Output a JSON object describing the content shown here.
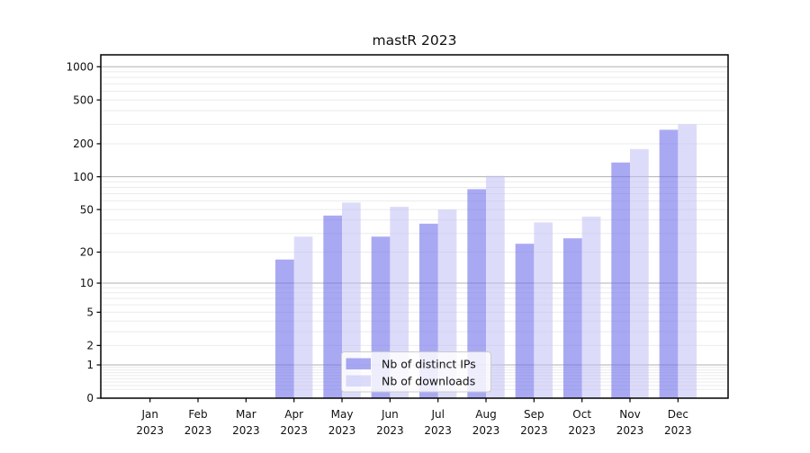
{
  "chart_data": {
    "type": "bar",
    "title": "mastR 2023",
    "yscale": "log1p",
    "ylim": [
      0,
      1282
    ],
    "yticks": [
      0,
      1,
      2,
      5,
      10,
      20,
      50,
      100,
      200,
      500,
      1000
    ],
    "major_gridlines": [
      1,
      10,
      100,
      1000
    ],
    "grid": true,
    "legend_position": "lower center",
    "categories": [
      "Jan",
      "Feb",
      "Mar",
      "Apr",
      "May",
      "Jun",
      "Jul",
      "Aug",
      "Sep",
      "Oct",
      "Nov",
      "Dec"
    ],
    "year": "2023",
    "series": [
      {
        "name": "Nb of distinct IPs",
        "color": "rgba(112,112,235,0.60)",
        "values": [
          0,
          0,
          0,
          17,
          44,
          28,
          37,
          77,
          24,
          27,
          135,
          268
        ]
      },
      {
        "name": "Nb of downloads",
        "color": "rgba(191,191,246,0.55)",
        "values": [
          0,
          0,
          0,
          28,
          58,
          53,
          50,
          102,
          38,
          43,
          179,
          300
        ]
      }
    ],
    "colors": {
      "minor_grid": "#ebebeb",
      "major_grid": "#b0b0b0",
      "spine": "#000000",
      "tick": "#000000",
      "text": "#111111",
      "legend_border": "#cccccc",
      "legend_bg": "rgba(255,255,255,0.8)"
    }
  }
}
